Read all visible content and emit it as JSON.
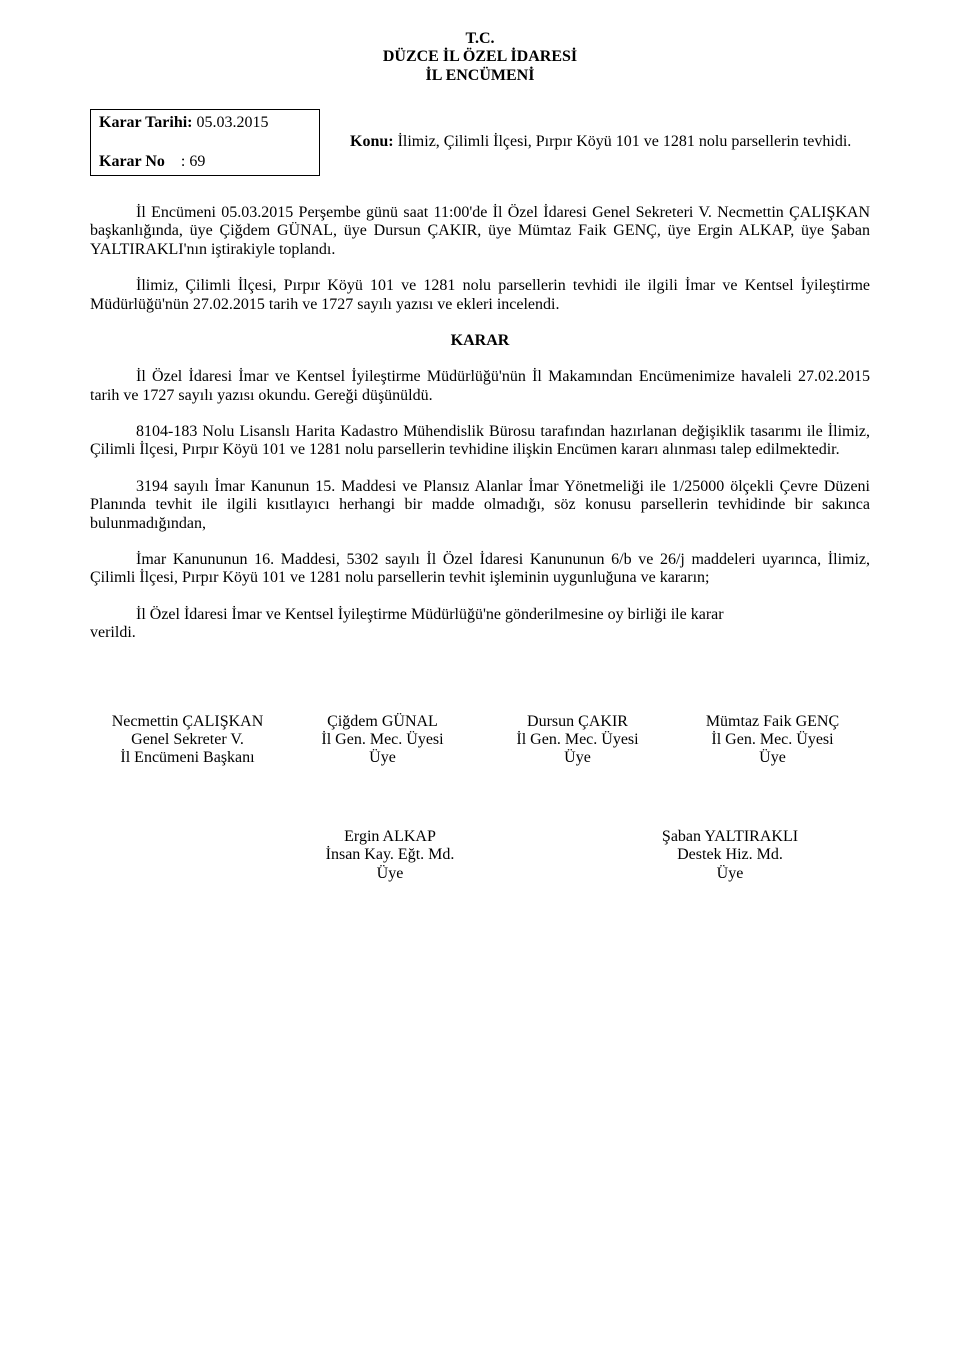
{
  "colors": {
    "text": "#000000",
    "background": "#ffffff",
    "border": "#000000"
  },
  "typography": {
    "font_family": "Times New Roman",
    "base_fontsize_pt": 12,
    "line_height": 1.15
  },
  "header": {
    "line1": "T.C.",
    "line2": "DÜZCE İL ÖZEL İDARESİ",
    "line3": "İL ENCÜMENİ"
  },
  "meta": {
    "tarih_label": "Karar Tarihi:",
    "tarih_value": "05.03.2015",
    "no_label": "Karar No",
    "no_sep": ":",
    "no_value": "69",
    "subject_label": "Konu:",
    "subject_text": " İlimiz, Çilimli İlçesi, Pırpır Köyü 101 ve 1281 nolu parsellerin tevhidi."
  },
  "body": {
    "p1": "İl Encümeni 05.03.2015 Perşembe günü saat 11:00'de İl Özel İdaresi Genel Sekreteri V. Necmettin ÇALIŞKAN başkanlığında, üye Çiğdem GÜNAL, üye Dursun ÇAKIR, üye Mümtaz Faik GENÇ, üye Ergin ALKAP, üye Şaban YALTIRAKLI'nın iştirakiyle toplandı.",
    "p2": "İlimiz, Çilimli İlçesi, Pırpır Köyü 101 ve 1281 nolu parsellerin tevhidi ile ilgili İmar ve Kentsel İyileştirme Müdürlüğü'nün 27.02.2015 tarih ve 1727 sayılı yazısı ve ekleri incelendi.",
    "karar_heading": "KARAR",
    "p3": "İl Özel İdaresi İmar ve Kentsel İyileştirme Müdürlüğü'nün İl Makamından Encümenimize havaleli 27.02.2015 tarih ve 1727 sayılı yazısı okundu. Gereği düşünüldü.",
    "p4": "8104-183 Nolu Lisanslı Harita Kadastro Mühendislik Bürosu tarafından hazırlanan değişiklik tasarımı ile İlimiz, Çilimli İlçesi, Pırpır Köyü 101 ve 1281 nolu parsellerin tevhidine ilişkin Encümen kararı alınması talep edilmektedir.",
    "p5": "3194 sayılı İmar Kanunun 15. Maddesi ve Plansız Alanlar İmar Yönetmeliği ile 1/25000 ölçekli Çevre Düzeni Planında tevhit ile ilgili kısıtlayıcı herhangi bir madde olmadığı, söz konusu parsellerin tevhidinde bir sakınca bulunmadığından,",
    "p6": "İmar Kanununun 16. Maddesi, 5302 sayılı İl Özel İdaresi Kanununun 6/b ve 26/j maddeleri uyarınca, İlimiz, Çilimli İlçesi, Pırpır Köyü 101 ve 1281 nolu parsellerin tevhit işleminin uygunluğuna ve kararın;",
    "p7a": "İl Özel İdaresi İmar ve Kentsel İyileştirme Müdürlüğü'ne gönderilmesine oy birliği ile karar",
    "p7b": "verildi."
  },
  "signatures_row1": [
    {
      "name": "Necmettin ÇALIŞKAN",
      "title1": "Genel Sekreter V.",
      "title2": "İl Encümeni Başkanı"
    },
    {
      "name": "Çiğdem GÜNAL",
      "title1": "İl Gen. Mec. Üyesi",
      "title2": "Üye"
    },
    {
      "name": "Dursun ÇAKIR",
      "title1": "İl Gen. Mec. Üyesi",
      "title2": "Üye"
    },
    {
      "name": "Mümtaz Faik GENÇ",
      "title1": "İl Gen. Mec. Üyesi",
      "title2": "Üye"
    }
  ],
  "signatures_row2": [
    {
      "name": "Ergin ALKAP",
      "title1": "İnsan Kay. Eğt. Md.",
      "title2": "Üye"
    },
    {
      "name": "Şaban YALTIRAKLI",
      "title1": "Destek Hiz. Md.",
      "title2": "Üye"
    }
  ]
}
